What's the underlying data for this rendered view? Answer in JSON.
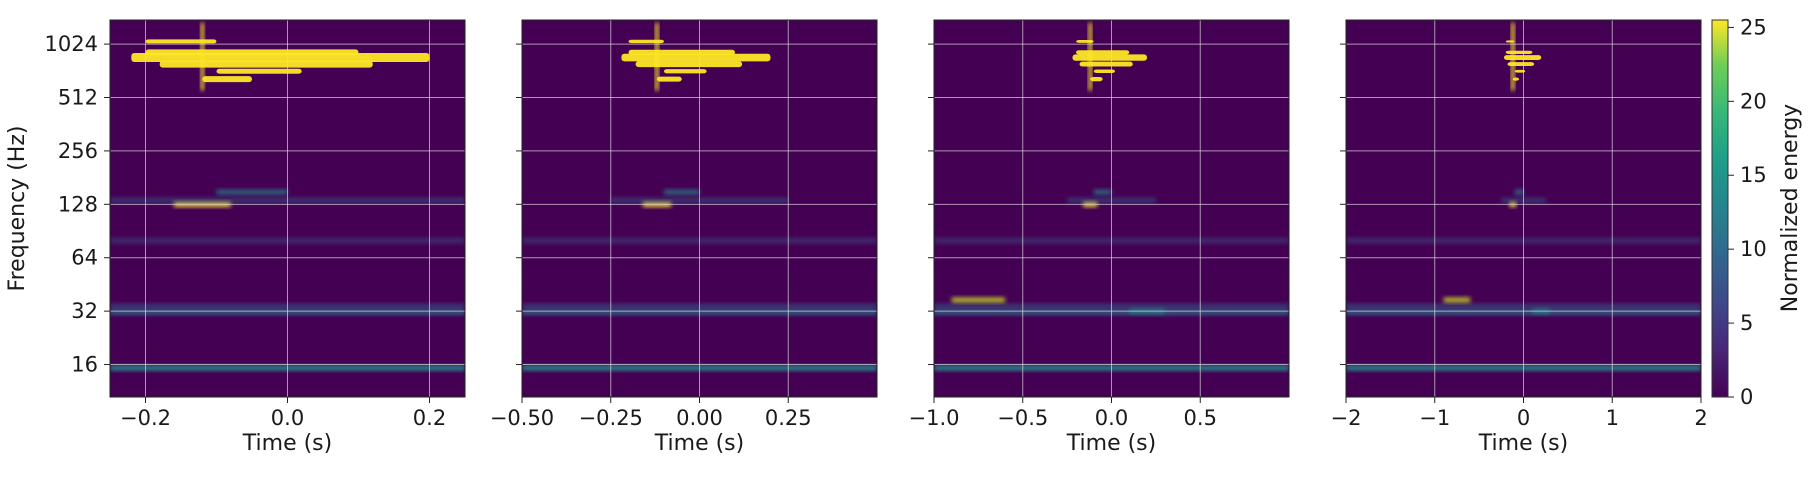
{
  "chart_data": [
    {
      "type": "heatmap",
      "xlabel": "Time (s)",
      "ylabel": "Frequency (Hz)",
      "x_range": [
        -0.25,
        0.25
      ],
      "x_ticks": [
        -0.2,
        0.0,
        0.2
      ],
      "x_tick_labels": [
        "−0.2",
        "0.0",
        "0.2"
      ],
      "y_scale": "log2",
      "y_range": [
        10.5,
        1400
      ],
      "y_ticks": [
        16,
        32,
        64,
        128,
        256,
        512,
        1024
      ],
      "y_tick_labels": [
        "16",
        "32",
        "64",
        "128",
        "256",
        "512",
        "1024"
      ],
      "grid": true
    },
    {
      "type": "heatmap",
      "xlabel": "Time (s)",
      "ylabel": "",
      "x_range": [
        -0.5,
        0.5
      ],
      "x_ticks": [
        -0.5,
        -0.25,
        0.0,
        0.25
      ],
      "x_tick_labels": [
        "−0.50",
        "−0.25",
        "0.00",
        "0.25"
      ],
      "y_scale": "log2",
      "y_range": [
        10.5,
        1400
      ],
      "y_ticks": [
        16,
        32,
        64,
        128,
        256,
        512,
        1024
      ],
      "grid": true
    },
    {
      "type": "heatmap",
      "xlabel": "Time (s)",
      "ylabel": "",
      "x_range": [
        -1.0,
        1.0
      ],
      "x_ticks": [
        -1.0,
        -0.5,
        0.0,
        0.5
      ],
      "x_tick_labels": [
        "−1.0",
        "−0.5",
        "0.0",
        "0.5"
      ],
      "y_scale": "log2",
      "y_range": [
        10.5,
        1400
      ],
      "y_ticks": [
        16,
        32,
        64,
        128,
        256,
        512,
        1024
      ],
      "grid": true
    },
    {
      "type": "heatmap",
      "xlabel": "Time (s)",
      "ylabel": "",
      "x_range": [
        -2,
        2
      ],
      "x_ticks": [
        -2,
        -1,
        0,
        1,
        2
      ],
      "x_tick_labels": [
        "−2",
        "−1",
        "0",
        "1",
        "2"
      ],
      "y_scale": "log2",
      "y_range": [
        10.5,
        1400
      ],
      "y_ticks": [
        16,
        32,
        64,
        128,
        256,
        512,
        1024
      ],
      "grid": true
    }
  ],
  "colorbar": {
    "label": "Normalized energy",
    "range": [
      0,
      25.5
    ],
    "ticks": [
      0,
      5,
      10,
      15,
      20,
      25
    ],
    "tick_labels": [
      "0",
      "5",
      "10",
      "15",
      "20",
      "25"
    ],
    "colormap": "viridis"
  },
  "colors": {
    "background": "#440154",
    "low": "#46075a",
    "mid": "#21918c",
    "high": "#fde725",
    "grid": "#d9d9d9"
  }
}
